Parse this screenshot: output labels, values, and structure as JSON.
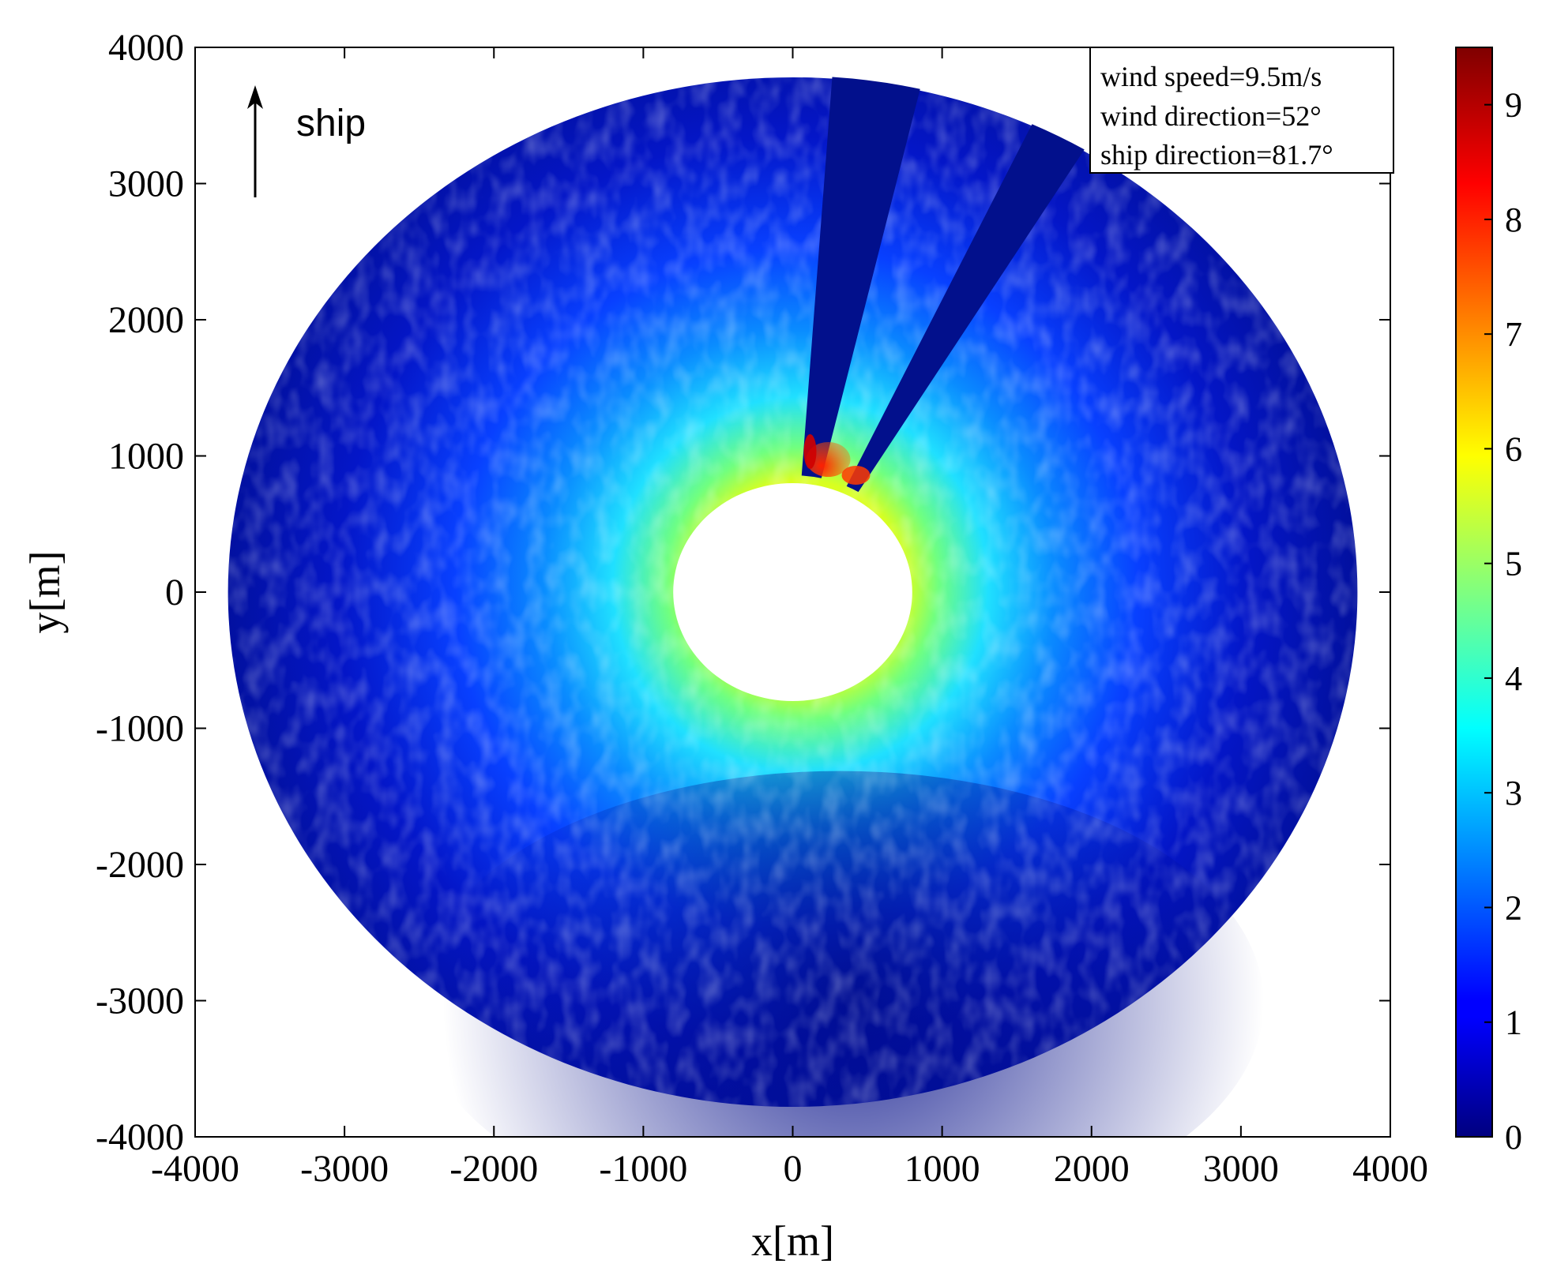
{
  "chart_data": {
    "type": "heatmap",
    "xlabel": "x[m]",
    "ylabel": "y[m]",
    "xlim": [
      -4000,
      4000
    ],
    "ylim": [
      -4000,
      4000
    ],
    "xticks": [
      -4000,
      -3000,
      -2000,
      -1000,
      0,
      1000,
      2000,
      3000,
      4000
    ],
    "yticks": [
      -4000,
      -3000,
      -2000,
      -1000,
      0,
      1000,
      2000,
      3000,
      4000
    ],
    "xtick_labels": [
      "-4000",
      "-3000",
      "-2000",
      "-1000",
      "0",
      "1000",
      "2000",
      "3000",
      "4000"
    ],
    "ytick_labels": [
      "-4000",
      "-3000",
      "-2000",
      "-1000",
      "0",
      "1000",
      "2000",
      "3000",
      "4000"
    ],
    "colorbar": {
      "colormap": "jet",
      "range": [
        0,
        9.5
      ],
      "ticks": [
        0,
        1,
        2,
        3,
        4,
        5,
        6,
        7,
        8,
        9
      ],
      "tick_labels": [
        "0",
        "1",
        "2",
        "3",
        "4",
        "5",
        "6",
        "7",
        "8",
        "9"
      ]
    },
    "field": {
      "shape": "annulus",
      "inner_radius_m": 800,
      "outer_radius_m": 3780,
      "center_m": [
        0,
        0
      ],
      "blind_sectors_deg_from_north": [
        [
          4,
          13
        ],
        [
          25,
          31
        ]
      ],
      "peak_intensity_region": "near inner edge, north-north-east",
      "peak_value": 9.5,
      "near_field_value_range": [
        4,
        6.5
      ],
      "far_field_value_range": [
        0.3,
        2
      ]
    },
    "annotation_box": {
      "lines": [
        "wind speed=9.5m/s",
        "wind direction=52°",
        "ship direction=81.7°"
      ]
    },
    "ship_indicator": {
      "label": "ship",
      "direction": "up"
    },
    "grid": false
  }
}
